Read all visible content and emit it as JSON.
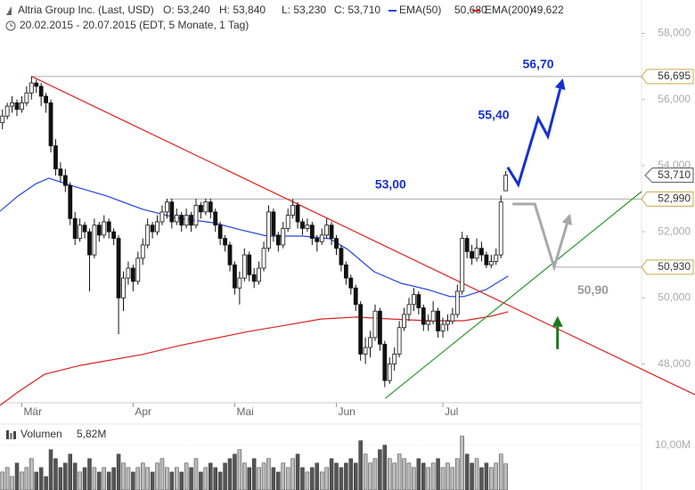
{
  "chart_data": {
    "type": "candlestick",
    "title": "Altria Group Inc. (Last, USD)",
    "subtitle": "20.02.2015 - 20.07.2015 (EDT, 5 Monate, 1 Tag)",
    "quote": [
      {
        "value": 53.24,
        "label": "O: 53,240"
      },
      {
        "value": 53.84,
        "label": "H: 53,840"
      },
      {
        "value": 53.23,
        "label": "L: 53,230"
      },
      {
        "value": 53.71,
        "label": "C: 53,710"
      }
    ],
    "xlim": [
      0,
      143.6
    ],
    "xticks": [
      {
        "value": 4,
        "label": "Mär"
      },
      {
        "value": 27,
        "label": "Apr"
      },
      {
        "value": 48,
        "label": "Mai"
      },
      {
        "value": 69,
        "label": "Jun"
      },
      {
        "value": 91,
        "label": "Jul"
      }
    ],
    "ylim": [
      46.83,
      59.01
    ],
    "yticks": [
      {
        "value": 48,
        "label": "48,000"
      },
      {
        "value": 50,
        "label": "50,000"
      },
      {
        "value": 52,
        "label": "52,000"
      },
      {
        "value": 54,
        "label": "54,000"
      },
      {
        "value": 56,
        "label": "56,000"
      },
      {
        "value": 58,
        "label": "58,000"
      }
    ],
    "up_color": "#ffffff",
    "down_color": "#111111",
    "candles": [
      [
        55.3,
        55.7,
        55.1,
        55.5
      ],
      [
        55.5,
        55.9,
        55.4,
        55.8
      ],
      [
        55.8,
        56.1,
        55.6,
        55.9
      ],
      [
        55.9,
        56.0,
        55.5,
        55.7
      ],
      [
        55.7,
        56.1,
        55.6,
        55.9
      ],
      [
        55.9,
        56.4,
        55.8,
        56.2
      ],
      [
        56.2,
        56.69,
        56.0,
        56.5
      ],
      [
        56.5,
        56.6,
        56.2,
        56.4
      ],
      [
        56.4,
        56.5,
        55.8,
        56.1
      ],
      [
        56.1,
        56.2,
        55.6,
        55.9
      ],
      [
        55.9,
        56.0,
        54.4,
        54.6
      ],
      [
        54.6,
        54.8,
        53.7,
        53.9
      ],
      [
        53.9,
        54.1,
        53.5,
        53.7
      ],
      [
        53.7,
        53.9,
        53.2,
        53.4
      ],
      [
        53.4,
        53.5,
        52.2,
        52.4
      ],
      [
        52.4,
        52.6,
        51.6,
        51.8
      ],
      [
        51.8,
        52.4,
        51.7,
        52.2
      ],
      [
        52.2,
        52.3,
        51.8,
        52.0
      ],
      [
        52.0,
        52.1,
        50.2,
        51.3
      ],
      [
        51.3,
        52.4,
        51.2,
        52.2
      ],
      [
        52.2,
        52.3,
        51.7,
        51.9
      ],
      [
        51.9,
        52.5,
        51.8,
        52.3
      ],
      [
        52.3,
        52.4,
        51.8,
        52.0
      ],
      [
        52.0,
        52.1,
        51.6,
        51.8
      ],
      [
        51.8,
        51.9,
        48.9,
        50.0
      ],
      [
        50.0,
        50.8,
        49.6,
        50.6
      ],
      [
        50.6,
        51.1,
        50.4,
        50.9
      ],
      [
        50.9,
        51.0,
        50.2,
        50.5
      ],
      [
        50.5,
        51.4,
        50.4,
        51.2
      ],
      [
        51.2,
        51.8,
        51.0,
        51.6
      ],
      [
        51.6,
        52.4,
        51.5,
        52.2
      ],
      [
        52.2,
        52.3,
        51.8,
        52.0
      ],
      [
        52.0,
        52.5,
        51.9,
        52.3
      ],
      [
        52.3,
        52.8,
        52.2,
        52.6
      ],
      [
        52.6,
        53.0,
        52.4,
        52.9
      ],
      [
        52.9,
        53.0,
        52.1,
        52.3
      ],
      [
        52.3,
        52.7,
        52.2,
        52.5
      ],
      [
        52.5,
        52.6,
        52.0,
        52.2
      ],
      [
        52.2,
        52.7,
        52.1,
        52.5
      ],
      [
        52.5,
        52.6,
        52.0,
        52.2
      ],
      [
        52.2,
        53.0,
        52.1,
        52.8
      ],
      [
        52.8,
        52.9,
        52.4,
        52.6
      ],
      [
        52.6,
        53.0,
        52.5,
        52.9
      ],
      [
        52.9,
        53.0,
        52.4,
        52.6
      ],
      [
        52.6,
        52.7,
        52.0,
        52.2
      ],
      [
        52.2,
        52.3,
        51.6,
        51.8
      ],
      [
        51.8,
        51.9,
        51.4,
        51.6
      ],
      [
        51.6,
        51.7,
        50.8,
        51.0
      ],
      [
        51.0,
        51.1,
        50.1,
        50.3
      ],
      [
        50.3,
        50.8,
        49.8,
        50.6
      ],
      [
        50.6,
        51.5,
        50.5,
        51.3
      ],
      [
        51.3,
        51.4,
        50.5,
        50.7
      ],
      [
        50.7,
        50.9,
        50.3,
        50.5
      ],
      [
        50.5,
        51.1,
        50.4,
        50.9
      ],
      [
        50.9,
        51.7,
        50.8,
        51.5
      ],
      [
        51.5,
        52.8,
        51.4,
        52.6
      ],
      [
        52.6,
        52.7,
        51.7,
        51.9
      ],
      [
        51.9,
        52.0,
        51.4,
        51.6
      ],
      [
        51.6,
        52.3,
        51.5,
        52.1
      ],
      [
        52.1,
        52.7,
        52.0,
        52.5
      ],
      [
        52.5,
        52.99,
        52.4,
        52.8
      ],
      [
        52.8,
        52.9,
        52.1,
        52.3
      ],
      [
        52.3,
        52.4,
        51.9,
        52.1
      ],
      [
        52.1,
        52.4,
        52.0,
        52.2
      ],
      [
        52.2,
        52.3,
        51.6,
        51.8
      ],
      [
        51.8,
        51.9,
        51.4,
        51.7
      ],
      [
        51.7,
        52.1,
        51.6,
        51.9
      ],
      [
        51.9,
        52.4,
        51.8,
        52.2
      ],
      [
        52.2,
        52.3,
        51.6,
        51.8
      ],
      [
        51.8,
        51.9,
        51.3,
        51.5
      ],
      [
        51.5,
        51.6,
        50.8,
        51.0
      ],
      [
        51.0,
        51.1,
        50.4,
        50.6
      ],
      [
        50.6,
        50.7,
        50.1,
        50.3
      ],
      [
        50.3,
        50.4,
        49.6,
        49.8
      ],
      [
        49.8,
        49.9,
        48.1,
        48.3
      ],
      [
        48.3,
        48.8,
        48.0,
        48.5
      ],
      [
        48.5,
        49.0,
        48.2,
        48.8
      ],
      [
        48.8,
        49.8,
        48.7,
        49.6
      ],
      [
        49.6,
        49.7,
        48.4,
        48.6
      ],
      [
        48.6,
        48.7,
        47.3,
        47.5
      ],
      [
        47.5,
        48.2,
        47.4,
        48.0
      ],
      [
        48.0,
        48.5,
        47.8,
        48.3
      ],
      [
        48.3,
        49.3,
        48.2,
        49.1
      ],
      [
        49.1,
        49.7,
        49.0,
        49.5
      ],
      [
        49.5,
        50.0,
        49.3,
        49.8
      ],
      [
        49.8,
        50.3,
        49.6,
        50.1
      ],
      [
        50.1,
        50.2,
        49.5,
        49.7
      ],
      [
        49.7,
        49.8,
        49.0,
        49.2
      ],
      [
        49.2,
        49.5,
        49.0,
        49.3
      ],
      [
        49.3,
        49.9,
        49.2,
        49.6
      ],
      [
        49.6,
        49.7,
        48.8,
        49.0
      ],
      [
        49.0,
        49.4,
        48.8,
        49.2
      ],
      [
        49.2,
        49.5,
        49.0,
        49.3
      ],
      [
        49.3,
        49.7,
        49.2,
        49.5
      ],
      [
        49.5,
        50.4,
        49.4,
        50.2
      ],
      [
        50.2,
        52.0,
        50.1,
        51.8
      ],
      [
        51.8,
        51.9,
        51.2,
        51.4
      ],
      [
        51.4,
        51.6,
        51.0,
        51.2
      ],
      [
        51.2,
        51.8,
        51.1,
        51.5
      ],
      [
        51.5,
        51.7,
        51.1,
        51.3
      ],
      [
        51.3,
        51.4,
        50.9,
        51.0
      ],
      [
        51.0,
        51.3,
        50.9,
        51.1
      ],
      [
        51.1,
        51.5,
        51.0,
        51.3
      ],
      [
        51.3,
        53.1,
        51.2,
        52.9
      ],
      [
        53.24,
        53.84,
        53.23,
        53.71
      ]
    ],
    "series": [
      {
        "name": "EMA(50)",
        "color": "#2244dd",
        "last": {
          "value": 50.68,
          "label": "50,680"
        },
        "x": [
          0,
          3.7,
          7.4,
          10.1,
          14.7,
          22.1,
          29.5,
          36.8,
          44.2,
          49.7,
          55.2,
          62.6,
          68.1,
          71.8,
          77.3,
          82.9,
          88.4,
          93,
          95.8,
          100.4,
          105
        ],
        "values": [
          52.62,
          53.08,
          53.45,
          53.62,
          53.4,
          53.08,
          52.68,
          52.41,
          52.27,
          52.06,
          51.87,
          51.87,
          51.79,
          51.47,
          50.79,
          50.44,
          50.25,
          50.04,
          50.04,
          50.25,
          50.66
        ]
      },
      {
        "name": "EMA(200)",
        "color": "#dd2222",
        "last": {
          "value": 49.622,
          "label": "49,622"
        },
        "x": [
          0,
          3.7,
          9.2,
          16.6,
          22.1,
          29.5,
          36.8,
          44.2,
          51.6,
          58.9,
          66.3,
          73.7,
          81,
          88.4,
          95.8,
          101.3,
          105
        ],
        "values": [
          46.75,
          47.15,
          47.69,
          47.96,
          48.1,
          48.29,
          48.55,
          48.77,
          48.99,
          49.17,
          49.36,
          49.42,
          49.36,
          49.31,
          49.31,
          49.44,
          49.58
        ]
      }
    ],
    "levels": [
      {
        "value": 56.695,
        "label": "56,695",
        "from": 6.4
      },
      {
        "value": 52.99,
        "label": "52,990",
        "from": 35
      },
      {
        "value": 50.93,
        "label": "50,930",
        "from": 114.2
      }
    ],
    "last_price": {
      "value": 53.71,
      "label": "53,710"
    },
    "trendlines": [
      {
        "color": "#e02020",
        "points": [
          [
            6.5,
            56.7
          ],
          [
            143.6,
            47.07
          ]
        ]
      },
      {
        "color": "#2a9a2a",
        "points": [
          [
            79.6,
            46.96
          ],
          [
            132.6,
            53.22
          ]
        ]
      }
    ],
    "projections": [
      {
        "color": "#1530d0",
        "points": [
          [
            104.9,
            53.95
          ],
          [
            107.1,
            53.43
          ],
          [
            111.2,
            55.43
          ],
          [
            113.2,
            54.89
          ],
          [
            116.3,
            56.64
          ]
        ]
      },
      {
        "color": "#a8a8a8",
        "points": [
          [
            105.9,
            52.84
          ],
          [
            110.5,
            52.84
          ],
          [
            114.5,
            50.93
          ],
          [
            117.8,
            52.55
          ]
        ]
      },
      {
        "color": "#1a7a1a",
        "points": [
          [
            115.2,
            48.45
          ],
          [
            115.2,
            49.45
          ]
        ]
      }
    ],
    "annotations": [
      {
        "value": 56.7,
        "label": "56,70",
        "color": "#1530d0",
        "at": [
          111.2,
          57.05
        ]
      },
      {
        "value": 55.4,
        "label": "55,40",
        "color": "#1530d0",
        "at": [
          102,
          55.51
        ]
      },
      {
        "value": 53.0,
        "label": "53,00",
        "color": "#1530d0",
        "at": [
          80.7,
          53.41
        ]
      },
      {
        "value": 50.9,
        "label": "50,90",
        "color": "#999999",
        "at": [
          122.5,
          50.22
        ]
      }
    ],
    "volume": {
      "title": "Volumen",
      "last": {
        "value": 5.82,
        "label": "5,82M"
      },
      "vlim": [
        0,
        14.7
      ],
      "vticks": [
        {
          "value": 10,
          "label": "10,00M"
        }
      ],
      "values": [
        4,
        5,
        3,
        6,
        4,
        5,
        7,
        4,
        5,
        3,
        9,
        7,
        5,
        6,
        8,
        6,
        4,
        5,
        7,
        5,
        4,
        5,
        4,
        5,
        8,
        6,
        5,
        4,
        5,
        6,
        5,
        4,
        6,
        7,
        5,
        4,
        5,
        4,
        6,
        5,
        7,
        4,
        5,
        6,
        5,
        4,
        6,
        7,
        8,
        9,
        6,
        5,
        7,
        5,
        6,
        7,
        5,
        4,
        6,
        5,
        7,
        8,
        5,
        4,
        5,
        6,
        4,
        5,
        7,
        6,
        5,
        6,
        7,
        6,
        11,
        8,
        6,
        7,
        9,
        10,
        7,
        6,
        8,
        7,
        6,
        5,
        7,
        6,
        5,
        6,
        7,
        5,
        6,
        5,
        7,
        12,
        8,
        6,
        7,
        5,
        6,
        5,
        6,
        8,
        5.82
      ]
    }
  }
}
